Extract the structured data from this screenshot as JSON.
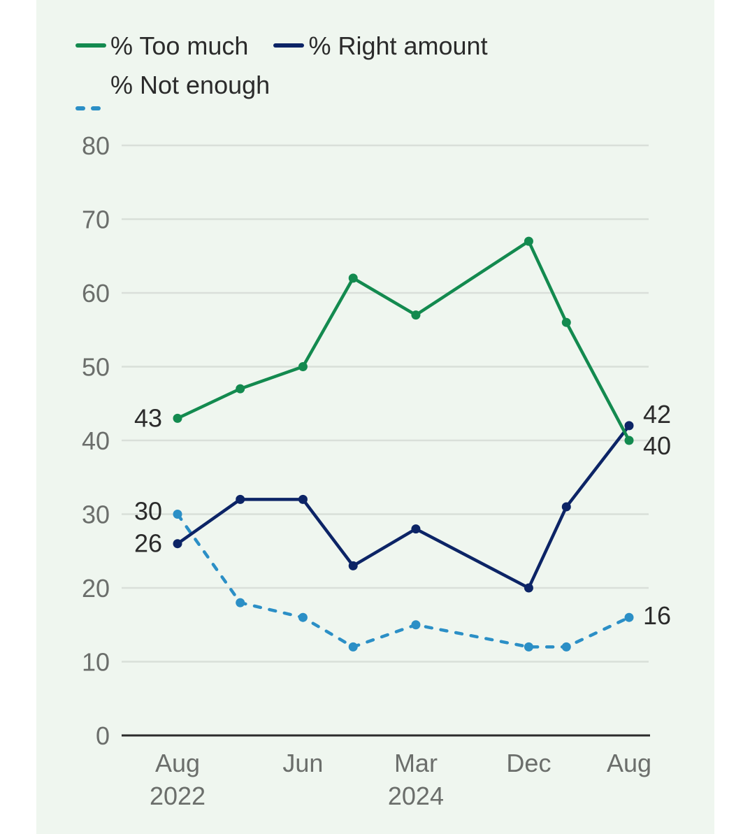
{
  "chart_data": {
    "type": "line",
    "title": "",
    "xlabel": "",
    "ylabel": "",
    "ylim": [
      0,
      80
    ],
    "yticks": [
      0,
      10,
      20,
      30,
      40,
      50,
      60,
      70,
      80
    ],
    "grid": true,
    "legend_position": "top",
    "x_month_offsets_from_aug_2022": [
      0,
      5,
      10,
      14,
      19,
      28,
      31,
      36
    ],
    "x_tick_labels": [
      {
        "month_offset": 0,
        "line1": "Aug",
        "line2": "2022"
      },
      {
        "month_offset": 10,
        "line1": "Jun",
        "line2": ""
      },
      {
        "month_offset": 19,
        "line1": "Mar",
        "line2": "2024"
      },
      {
        "month_offset": 28,
        "line1": "Dec",
        "line2": ""
      },
      {
        "month_offset": 36,
        "line1": "Aug",
        "line2": ""
      }
    ],
    "xlim_months": [
      0,
      36
    ],
    "series": [
      {
        "name": "% Too much",
        "color": "#138a4f",
        "dashed": false,
        "values": [
          43,
          47,
          50,
          62,
          57,
          67,
          56,
          40
        ],
        "labels": {
          "first": "43",
          "last": "40"
        }
      },
      {
        "name": "% Right amount",
        "color": "#0c2466",
        "dashed": false,
        "values": [
          26,
          32,
          32,
          23,
          28,
          20,
          31,
          42
        ],
        "labels": {
          "first": "26",
          "last": "42"
        }
      },
      {
        "name": "% Not enough",
        "color": "#2b8fc6",
        "dashed": true,
        "values": [
          30,
          18,
          16,
          12,
          15,
          12,
          12,
          16
        ],
        "labels": {
          "first": "30",
          "last": "16"
        }
      }
    ]
  },
  "legend": {
    "items": [
      {
        "label": "% Too much"
      },
      {
        "label": "% Right amount"
      },
      {
        "label": "% Not enough"
      }
    ]
  }
}
